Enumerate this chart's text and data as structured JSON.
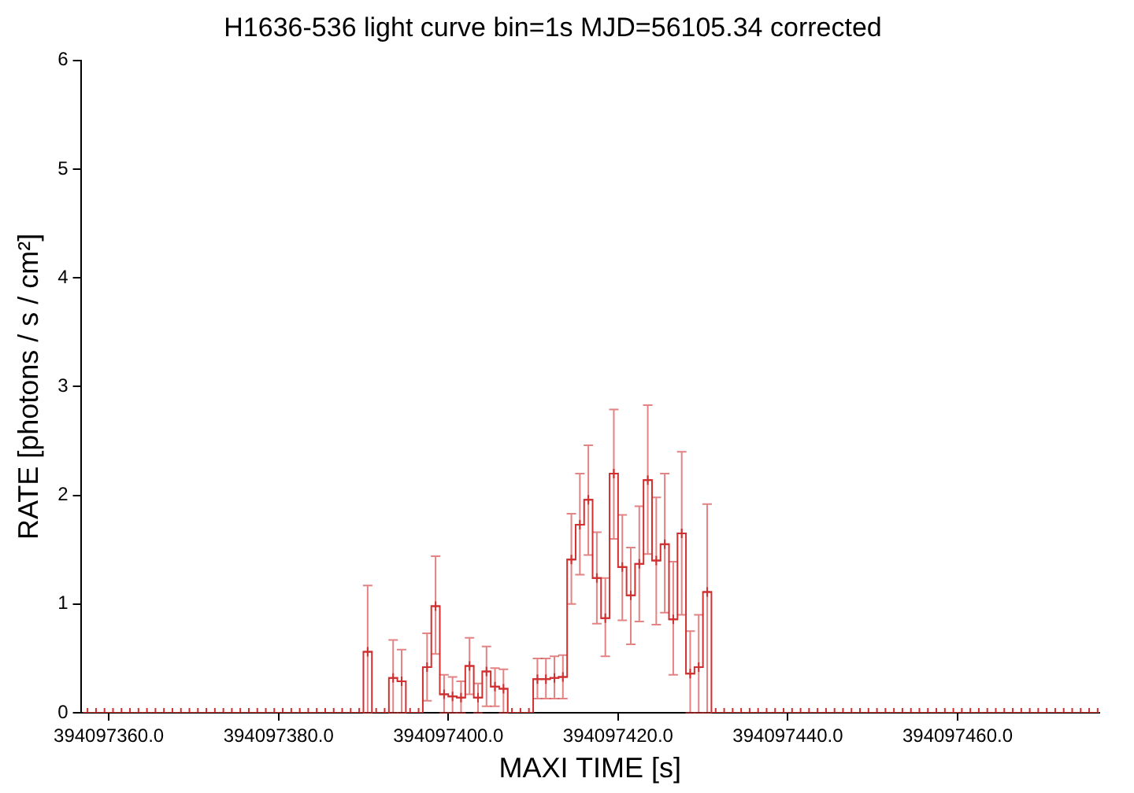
{
  "chart_data": {
    "type": "step",
    "title": "H1636-536 light curve bin=1s MJD=56105.34 corrected",
    "xlabel": "MAXI TIME [s]",
    "ylabel": "RATE [photons / s / cm²]",
    "xlim": [
      394097356.7,
      394097476.7
    ],
    "ylim": [
      0,
      6
    ],
    "xticks": [
      {
        "value": 394097360,
        "label": "394097360.0"
      },
      {
        "value": 394097380,
        "label": "394097380.0"
      },
      {
        "value": 394097400,
        "label": "394097400.0"
      },
      {
        "value": 394097420,
        "label": "394097420.0"
      },
      {
        "value": 394097440,
        "label": "394097440.0"
      },
      {
        "value": 394097460,
        "label": "394097460.0"
      }
    ],
    "yticks": [
      0,
      1,
      2,
      3,
      4,
      5,
      6
    ],
    "grid": false,
    "legend": false,
    "marker": "cross",
    "x": [
      394097357.5,
      394097358.5,
      394097359.5,
      394097360.5,
      394097361.5,
      394097362.5,
      394097363.5,
      394097364.5,
      394097365.5,
      394097366.5,
      394097367.5,
      394097368.5,
      394097369.5,
      394097370.5,
      394097371.5,
      394097372.5,
      394097373.5,
      394097374.5,
      394097375.5,
      394097376.5,
      394097377.5,
      394097378.5,
      394097379.5,
      394097380.5,
      394097381.5,
      394097382.5,
      394097383.5,
      394097384.5,
      394097385.5,
      394097386.5,
      394097387.5,
      394097388.5,
      394097389.5,
      394097390.5,
      394097391.5,
      394097392.5,
      394097393.5,
      394097394.5,
      394097395.5,
      394097396.5,
      394097397.5,
      394097398.5,
      394097399.5,
      394097400.5,
      394097401.5,
      394097402.5,
      394097403.5,
      394097404.5,
      394097405.5,
      394097406.5,
      394097407.5,
      394097408.5,
      394097409.5,
      394097410.5,
      394097411.5,
      394097412.5,
      394097413.5,
      394097414.5,
      394097415.5,
      394097416.5,
      394097417.5,
      394097418.5,
      394097419.5,
      394097420.5,
      394097421.5,
      394097422.5,
      394097423.5,
      394097424.5,
      394097425.5,
      394097426.5,
      394097427.5,
      394097428.5,
      394097429.5,
      394097430.5,
      394097431.5,
      394097432.5,
      394097433.5,
      394097434.5,
      394097435.5,
      394097436.5,
      394097437.5,
      394097438.5,
      394097439.5,
      394097440.5,
      394097441.5,
      394097442.5,
      394097443.5,
      394097444.5,
      394097445.5,
      394097446.5,
      394097447.5,
      394097448.5,
      394097449.5,
      394097450.5,
      394097451.5,
      394097452.5,
      394097453.5,
      394097454.5,
      394097455.5,
      394097456.5,
      394097457.5,
      394097458.5,
      394097459.5,
      394097460.5,
      394097461.5,
      394097462.5,
      394097463.5,
      394097464.5,
      394097465.5,
      394097466.5,
      394097467.5,
      394097468.5,
      394097469.5,
      394097470.5,
      394097471.5,
      394097472.5,
      394097473.5,
      394097474.5,
      394097475.5,
      394097476.5
    ],
    "series": [
      {
        "color": "#d03030",
        "values": [
          0,
          0,
          0,
          0,
          0,
          0,
          0,
          0,
          0,
          0,
          0,
          0,
          0,
          0,
          0,
          0,
          0,
          0,
          0,
          0,
          0,
          0,
          0,
          0,
          0,
          0,
          0,
          0,
          0,
          0,
          0,
          0,
          0,
          0.56,
          0,
          0,
          0.32,
          0.29,
          0,
          0,
          0.42,
          0.98,
          0.17,
          0.15,
          0.14,
          0.43,
          0.14,
          0.38,
          0.24,
          0.22,
          0,
          0,
          0,
          0.31,
          0.31,
          0.32,
          0.33,
          1.41,
          1.73,
          1.96,
          1.24,
          0.87,
          2.2,
          1.34,
          1.08,
          1.37,
          2.14,
          1.4,
          1.55,
          0.86,
          1.65,
          0.36,
          0.42,
          1.11,
          0,
          0,
          0,
          0,
          0,
          0,
          0,
          0,
          0,
          0,
          0,
          0,
          0,
          0,
          0,
          0,
          0,
          0,
          0,
          0,
          0,
          0,
          0,
          0,
          0,
          0,
          0,
          0,
          0,
          0,
          0,
          0,
          0,
          0,
          0,
          0,
          0,
          0,
          0,
          0,
          0,
          0,
          0,
          0,
          0,
          0
        ],
        "errors": [
          null,
          null,
          null,
          null,
          null,
          null,
          null,
          null,
          null,
          null,
          null,
          null,
          null,
          null,
          null,
          null,
          null,
          null,
          null,
          null,
          null,
          null,
          null,
          null,
          null,
          null,
          null,
          null,
          null,
          null,
          null,
          null,
          null,
          [
            0,
            1.17
          ],
          null,
          null,
          [
            0,
            0.67
          ],
          [
            0,
            0.58
          ],
          null,
          null,
          [
            0.11,
            0.73
          ],
          [
            0.54,
            1.44
          ],
          [
            0,
            0.35
          ],
          [
            0,
            0.33
          ],
          [
            0,
            0.29
          ],
          [
            0.17,
            0.69
          ],
          [
            0,
            0.27
          ],
          [
            0.06,
            0.61
          ],
          [
            0.06,
            0.41
          ],
          [
            0,
            0.4
          ],
          null,
          null,
          null,
          [
            0.13,
            0.5
          ],
          [
            0.13,
            0.5
          ],
          [
            0.13,
            0.52
          ],
          [
            0.13,
            0.53
          ],
          [
            1,
            1.83
          ],
          [
            1.27,
            2.2
          ],
          [
            1.45,
            2.46
          ],
          [
            0.82,
            1.66
          ],
          [
            0.52,
            1.24
          ],
          [
            1.6,
            2.79
          ],
          [
            0.85,
            1.82
          ],
          [
            0.63,
            1.52
          ],
          [
            0.84,
            1.9
          ],
          [
            1.46,
            2.83
          ],
          [
            0.81,
            1.98
          ],
          [
            0.92,
            2.2
          ],
          [
            0.35,
            1.39
          ],
          [
            0.9,
            2.4
          ],
          [
            0,
            0.75
          ],
          [
            0,
            0.9
          ],
          [
            0,
            1.92
          ],
          null,
          null,
          null,
          null,
          null,
          null,
          null,
          null,
          null,
          null,
          null,
          null,
          null,
          null,
          null,
          null,
          null,
          null,
          null,
          null,
          null,
          null,
          null,
          null,
          null,
          null,
          null,
          null,
          null,
          null,
          null,
          null,
          null,
          null,
          null,
          null,
          null,
          null,
          null,
          null,
          null,
          null,
          null,
          null,
          null,
          null
        ]
      }
    ]
  }
}
